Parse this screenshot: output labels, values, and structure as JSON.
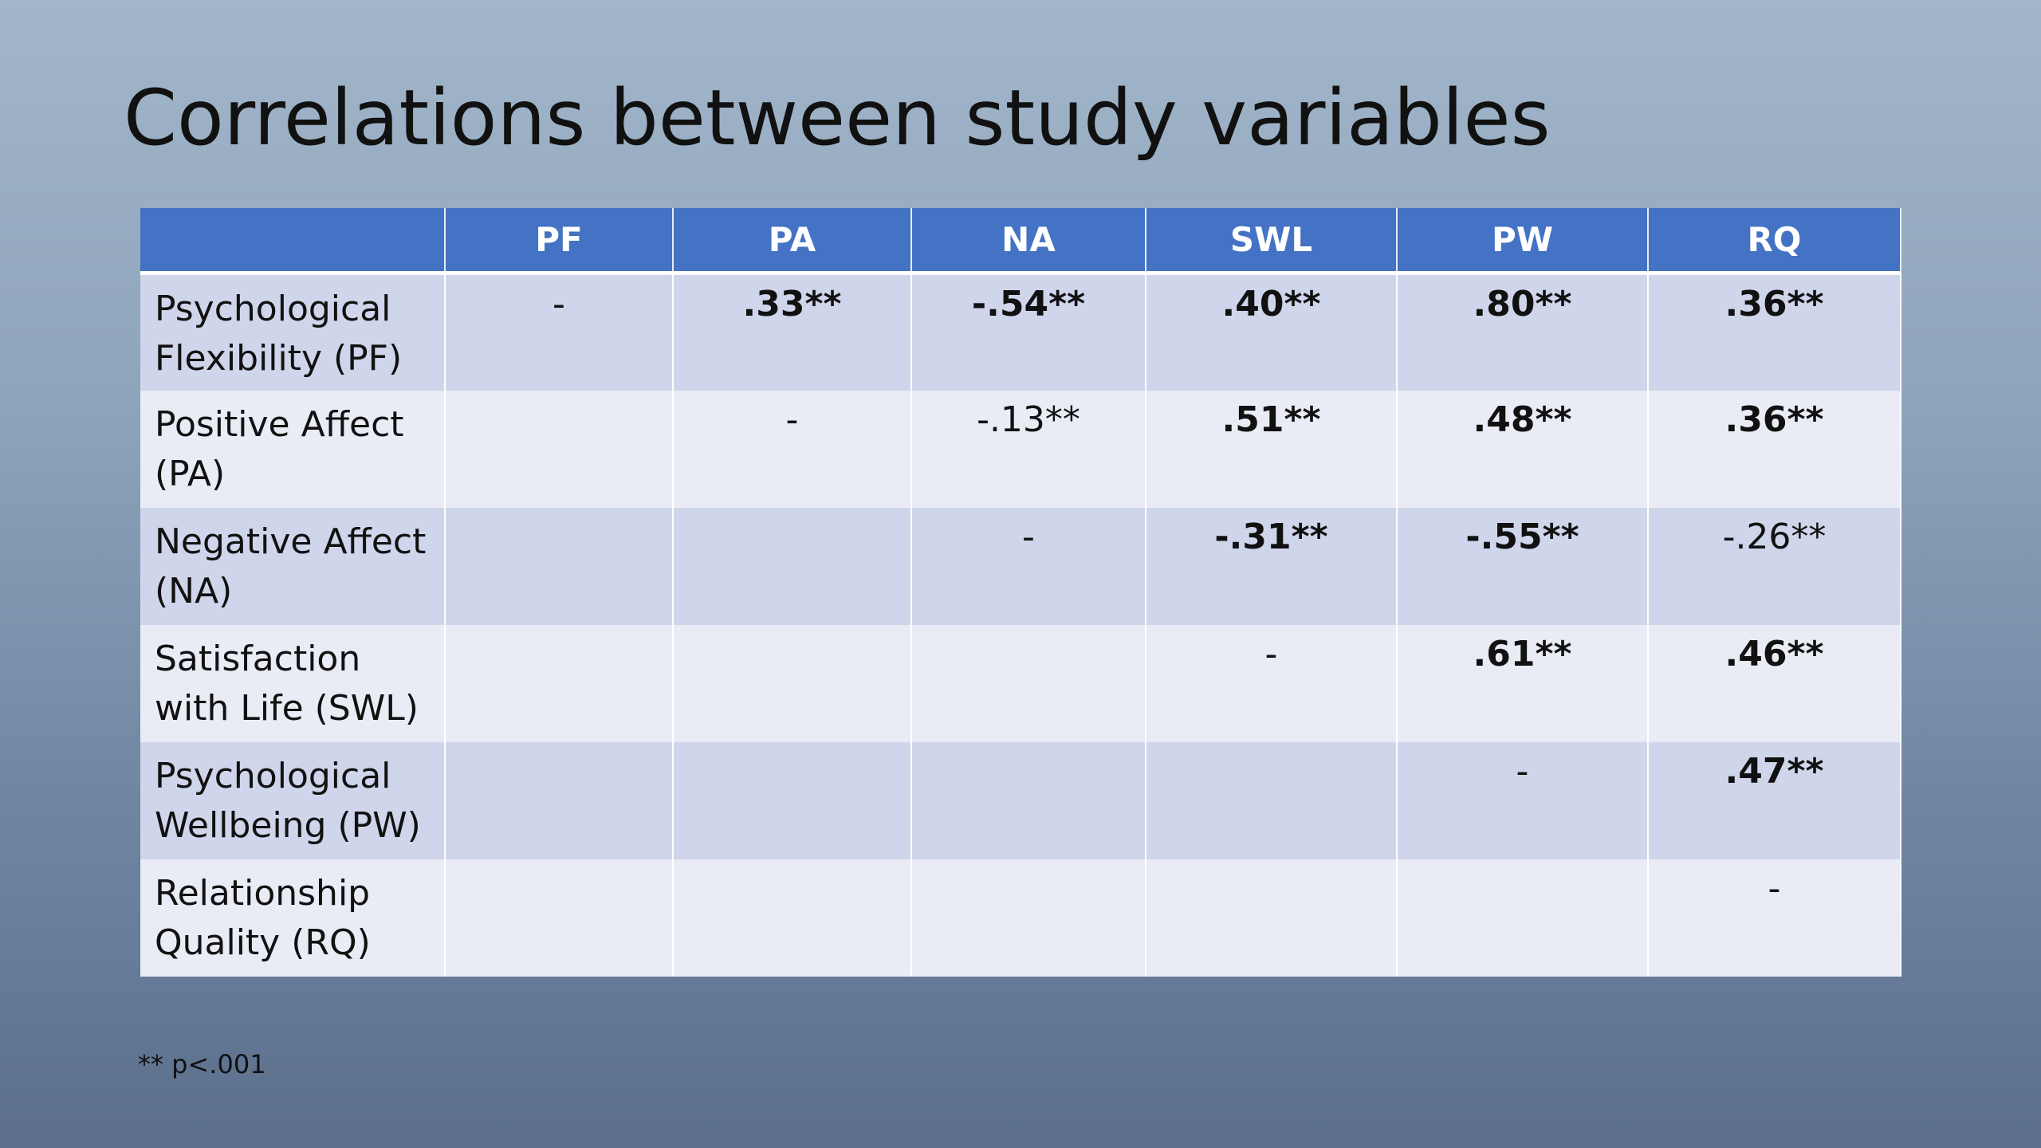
{
  "title": "Correlations between study variables",
  "table": {
    "header": [
      "PF",
      "PA",
      "NA",
      "SWL",
      "PW",
      "RQ"
    ],
    "rows": [
      {
        "label": "Psychological Flexibility (PF)",
        "cells": [
          {
            "text": "-",
            "bold": false
          },
          {
            "text": ".33**",
            "bold": true
          },
          {
            "text": "-.54**",
            "bold": true
          },
          {
            "text": ".40**",
            "bold": true
          },
          {
            "text": ".80**",
            "bold": true
          },
          {
            "text": ".36**",
            "bold": true
          }
        ]
      },
      {
        "label": "Positive Affect (PA)",
        "cells": [
          null,
          {
            "text": "-",
            "bold": false
          },
          {
            "text": "-.13**",
            "bold": false
          },
          {
            "text": ".51**",
            "bold": true
          },
          {
            "text": ".48**",
            "bold": true
          },
          {
            "text": ".36**",
            "bold": true
          }
        ]
      },
      {
        "label": "Negative Affect (NA)",
        "cells": [
          null,
          null,
          {
            "text": "-",
            "bold": false
          },
          {
            "text": "-.31**",
            "bold": true
          },
          {
            "text": "-.55**",
            "bold": true
          },
          {
            "text": "-.26**",
            "bold": false
          }
        ]
      },
      {
        "label": "Satisfaction with Life (SWL)",
        "cells": [
          null,
          null,
          null,
          {
            "text": "-",
            "bold": false
          },
          {
            "text": ".61**",
            "bold": true
          },
          {
            "text": ".46**",
            "bold": true
          }
        ]
      },
      {
        "label": "Psychological Wellbeing (PW)",
        "cells": [
          null,
          null,
          null,
          null,
          {
            "text": "-",
            "bold": false
          },
          {
            "text": ".47**",
            "bold": true
          }
        ]
      },
      {
        "label": "Relationship Quality (RQ)",
        "cells": [
          null,
          null,
          null,
          null,
          null,
          {
            "text": "-",
            "bold": false
          }
        ]
      }
    ]
  },
  "footnote": "** p<.001"
}
